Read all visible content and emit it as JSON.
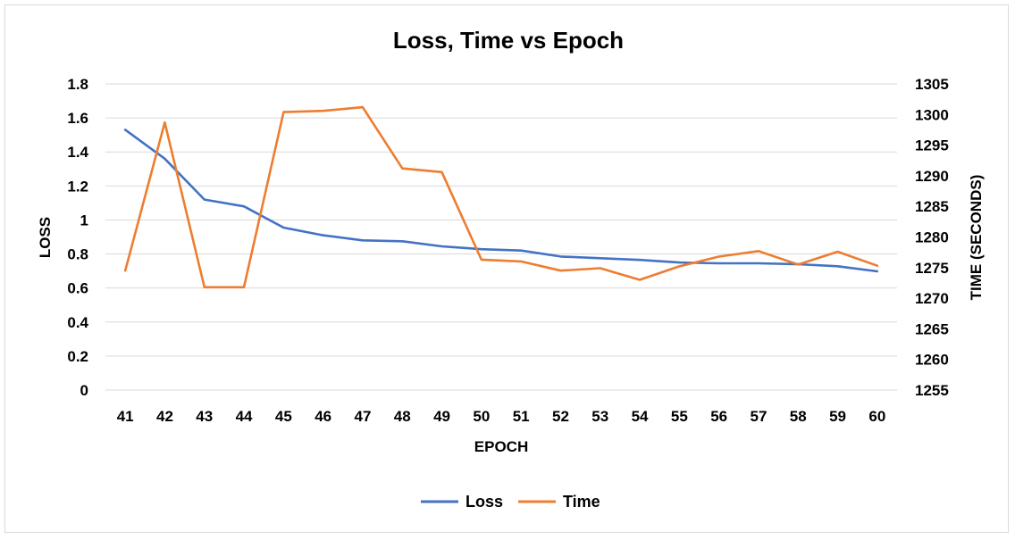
{
  "chart_data": {
    "type": "line",
    "title": "Loss, Time vs Epoch",
    "xlabel": "EPOCH",
    "ylabel_left": "LOSS",
    "ylabel_right": "TIME (SECONDS)",
    "x": [
      41,
      42,
      43,
      44,
      45,
      46,
      47,
      48,
      49,
      50,
      51,
      52,
      53,
      54,
      55,
      56,
      57,
      58,
      59,
      60
    ],
    "y_left": {
      "min": 0,
      "max": 1.8,
      "ticks": [
        "0",
        "0.2",
        "0.4",
        "0.6",
        "0.8",
        "1",
        "1.2",
        "1.4",
        "1.6",
        "1.8"
      ]
    },
    "y_right": {
      "min": 1255,
      "max": 1305,
      "ticks": [
        "1255",
        "1260",
        "1265",
        "1270",
        "1275",
        "1280",
        "1285",
        "1290",
        "1295",
        "1300",
        "1305"
      ]
    },
    "grid": true,
    "legend_position": "bottom",
    "series": [
      {
        "name": "Loss",
        "axis": "left",
        "color": "#4472c4",
        "values": [
          1.53,
          1.36,
          1.12,
          1.08,
          0.955,
          0.91,
          0.88,
          0.875,
          0.845,
          0.828,
          0.82,
          0.785,
          0.775,
          0.765,
          0.75,
          0.745,
          0.745,
          0.74,
          0.728,
          0.698
        ]
      },
      {
        "name": "Time",
        "axis": "right",
        "color": "#ed7d31",
        "values": [
          1274.5,
          1298.7,
          1271.8,
          1271.8,
          1300.4,
          1300.6,
          1301.2,
          1291.2,
          1290.6,
          1276.3,
          1276.0,
          1274.5,
          1274.9,
          1273.0,
          1275.2,
          1276.8,
          1277.7,
          1275.5,
          1277.6,
          1275.3
        ]
      }
    ]
  }
}
